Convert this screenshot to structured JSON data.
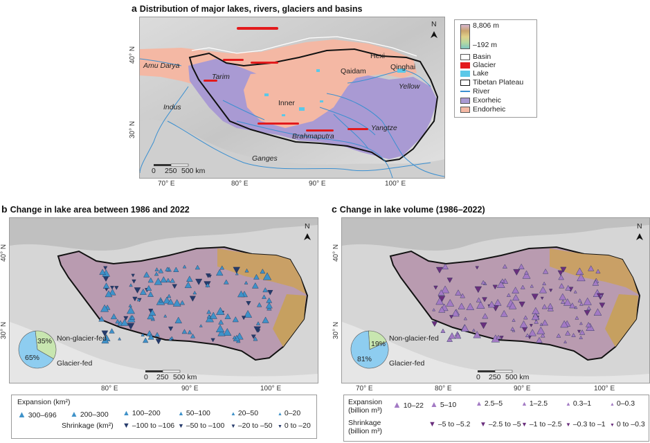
{
  "panel_a": {
    "letter": "a",
    "title": "Distribution of major lakes, rivers, glaciers and basins",
    "north": "N",
    "lat_ticks": [
      "40° N",
      "30° N"
    ],
    "lon_ticks": [
      "70° E",
      "80° E",
      "90° E",
      "100° E"
    ],
    "scale_labels": [
      "0",
      "250",
      "500 km"
    ],
    "labels_italic": [
      "Amu Darya",
      "Tarim",
      "Indus",
      "Brahmaputra",
      "Ganges",
      "Yangtze",
      "Yellow"
    ],
    "labels_regular": [
      "Qaidam",
      "Hexi",
      "Qinghai",
      "Inner"
    ],
    "legend": {
      "elev_max": "8,806 m",
      "elev_min": "–192 m",
      "items": [
        {
          "label": "Basin",
          "color": "#ffffff"
        },
        {
          "label": "Glacier",
          "color": "#e31a1c"
        },
        {
          "label": "Lake",
          "color": "#5bc8e8"
        },
        {
          "label": "Tibetan Plateau",
          "color": "#ffffff"
        },
        {
          "label": "River",
          "color": "#3a8fd0"
        },
        {
          "label": "Exorheic",
          "color": "#a99ad3"
        },
        {
          "label": "Endorheic",
          "color": "#f4b8a4"
        }
      ]
    }
  },
  "panel_b": {
    "letter": "b",
    "title": "Change in lake area between 1986 and 2022",
    "north": "N",
    "lat_ticks": [
      "40° N",
      "30° N"
    ],
    "lon_ticks": [
      "80° E",
      "90° E",
      "100° E"
    ],
    "scale_labels": [
      "0",
      "250",
      "500 km"
    ],
    "pie": {
      "slices": [
        {
          "label": "Non-glacier-fed",
          "value": 35,
          "text": "35%",
          "color": "#c8e6b0"
        },
        {
          "label": "Glacier-fed",
          "value": 65,
          "text": "65%",
          "color": "#8ecdf0"
        }
      ]
    },
    "legend": {
      "expansion_title": "Expansion (km²)",
      "expansion": [
        "300–696",
        "200–300",
        "100–200",
        "50–100",
        "20–50",
        "0–20"
      ],
      "shrinkage_title": "Shrinkage (km²)",
      "shrinkage": [
        "–100 to –106",
        "–50 to –100",
        "–20 to –50",
        "0 to –20"
      ]
    }
  },
  "panel_c": {
    "letter": "c",
    "title": "Change in lake volume (1986–2022)",
    "north": "N",
    "lat_ticks": [
      "40° N",
      "30° N"
    ],
    "lon_ticks": [
      "70° E",
      "80° E",
      "90° E",
      "100° E"
    ],
    "scale_labels": [
      "0",
      "250",
      "500 km"
    ],
    "pie": {
      "slices": [
        {
          "label": "Non-glacier-fed",
          "value": 19,
          "text": "19%",
          "color": "#c8e6b0"
        },
        {
          "label": "Glacier-fed",
          "value": 81,
          "text": "81%",
          "color": "#8ecdf0"
        }
      ]
    },
    "legend": {
      "expansion_title": "Expansion",
      "expansion_unit": "(billion m³)",
      "expansion": [
        "10–22",
        "5–10",
        "2.5–5",
        "1–2.5",
        "0.3–1",
        "0–0.3"
      ],
      "shrinkage_title": "Shrinkage",
      "shrinkage_unit": "(billion m³)",
      "shrinkage": [
        "–5 to –5.2",
        "–2.5 to –5",
        "–1 to –2.5",
        "–0.3 to –1",
        "0 to –0.3"
      ]
    }
  },
  "colors": {
    "tp_brown": "#b98a58",
    "tp_mauve": "#b99bb0",
    "exp_blue": "#3f92c9",
    "shr_navy": "#253a6b",
    "vol_purple": "#a37ac4",
    "vol_dark": "#6a2f7d"
  }
}
